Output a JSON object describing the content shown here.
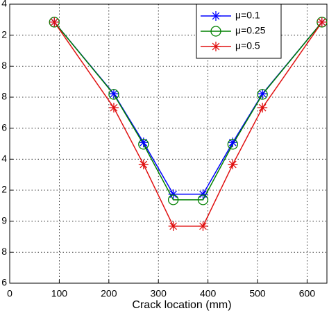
{
  "chart_data": {
    "type": "line",
    "x_label": "Crack location (mm)",
    "x": [
      90,
      210,
      270,
      330,
      390,
      450,
      510,
      630
    ],
    "series": [
      {
        "name": "μ=0.1",
        "color": "#0000ff",
        "marker": "star",
        "values": [
          8.42,
          6.11,
          4.54,
          2.87,
          2.87,
          4.54,
          6.11,
          8.42
        ]
      },
      {
        "name": "μ=0.25",
        "color": "#008000",
        "marker": "circle",
        "values": [
          8.42,
          6.09,
          4.48,
          2.69,
          2.69,
          4.48,
          6.09,
          8.42
        ]
      },
      {
        "name": "μ=0.5",
        "color": "#e01010",
        "marker": "star",
        "values": [
          8.42,
          5.66,
          3.83,
          1.84,
          1.84,
          3.83,
          5.66,
          8.42
        ]
      }
    ],
    "xlim": [
      0,
      640
    ],
    "xticks": [
      0,
      100,
      200,
      300,
      400,
      500,
      600
    ],
    "ylim": [
      0,
      9
    ],
    "yticks": [
      {
        "value": 9,
        "label": "4"
      },
      {
        "value": 8,
        "label": "2"
      },
      {
        "value": 7,
        "label": "8"
      },
      {
        "value": 6,
        "label": "8"
      },
      {
        "value": 5,
        "label": "6"
      },
      {
        "value": 4,
        "label": "4"
      },
      {
        "value": 3,
        "label": "2"
      },
      {
        "value": 2,
        "label": "9"
      },
      {
        "value": 1,
        "label": "8"
      },
      {
        "value": 0,
        "label": "6"
      }
    ],
    "grid": true,
    "legend": "upper right"
  }
}
